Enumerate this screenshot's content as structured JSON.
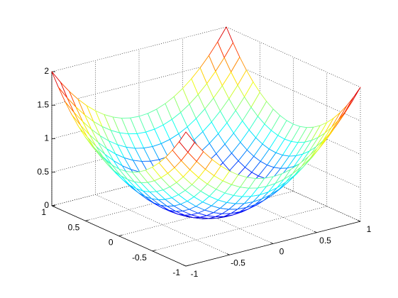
{
  "chart_data": {
    "type": "mesh",
    "colormap": "jet",
    "grid": true,
    "x": [
      -1,
      -0.9,
      -0.8,
      -0.7,
      -0.6,
      -0.5,
      -0.4,
      -0.3,
      -0.2,
      -0.1,
      0,
      0.1,
      0.2,
      0.3,
      0.4,
      0.5,
      0.6,
      0.7,
      0.8,
      0.9,
      1
    ],
    "y": [
      -1,
      -0.9,
      -0.8,
      -0.7,
      -0.6,
      -0.5,
      -0.4,
      -0.3,
      -0.2,
      -0.1,
      0,
      0.1,
      0.2,
      0.3,
      0.4,
      0.5,
      0.6,
      0.7,
      0.8,
      0.9,
      1
    ],
    "z": [
      [
        2,
        1.81,
        1.64,
        1.49,
        1.36,
        1.25,
        1.16,
        1.09,
        1.04,
        1.01,
        1,
        1.01,
        1.04,
        1.09,
        1.16,
        1.25,
        1.36,
        1.49,
        1.64,
        1.81,
        2
      ],
      [
        1.81,
        1.62,
        1.45,
        1.3,
        1.17,
        1.06,
        0.97,
        0.9,
        0.85,
        0.82,
        0.81,
        0.82,
        0.85,
        0.9,
        0.97,
        1.06,
        1.17,
        1.3,
        1.45,
        1.62,
        1.81
      ],
      [
        1.64,
        1.45,
        1.28,
        1.13,
        1,
        0.89,
        0.8,
        0.73,
        0.68,
        0.65,
        0.64,
        0.65,
        0.68,
        0.73,
        0.8,
        0.89,
        1,
        1.13,
        1.28,
        1.45,
        1.64
      ],
      [
        1.49,
        1.3,
        1.13,
        0.98,
        0.85,
        0.74,
        0.65,
        0.58,
        0.53,
        0.5,
        0.49,
        0.5,
        0.53,
        0.58,
        0.65,
        0.74,
        0.85,
        0.98,
        1.13,
        1.3,
        1.49
      ],
      [
        1.36,
        1.17,
        1,
        0.85,
        0.72,
        0.61,
        0.52,
        0.45,
        0.4,
        0.37,
        0.36,
        0.37,
        0.4,
        0.45,
        0.52,
        0.61,
        0.72,
        0.85,
        1,
        1.17,
        1.36
      ],
      [
        1.25,
        1.06,
        0.89,
        0.74,
        0.61,
        0.5,
        0.41,
        0.34,
        0.29,
        0.26,
        0.25,
        0.26,
        0.29,
        0.34,
        0.41,
        0.5,
        0.61,
        0.74,
        0.89,
        1.06,
        1.25
      ],
      [
        1.16,
        0.97,
        0.8,
        0.65,
        0.52,
        0.41,
        0.32,
        0.25,
        0.2,
        0.17,
        0.16,
        0.17,
        0.2,
        0.25,
        0.32,
        0.41,
        0.52,
        0.65,
        0.8,
        0.97,
        1.16
      ],
      [
        1.09,
        0.9,
        0.73,
        0.58,
        0.45,
        0.34,
        0.25,
        0.18,
        0.13,
        0.1,
        0.09,
        0.1,
        0.13,
        0.18,
        0.25,
        0.34,
        0.45,
        0.58,
        0.73,
        0.9,
        1.09
      ],
      [
        1.04,
        0.85,
        0.68,
        0.53,
        0.4,
        0.29,
        0.2,
        0.13,
        0.08,
        0.05,
        0.04,
        0.05,
        0.08,
        0.13,
        0.2,
        0.29,
        0.4,
        0.53,
        0.68,
        0.85,
        1.04
      ],
      [
        1.01,
        0.82,
        0.65,
        0.5,
        0.37,
        0.26,
        0.17,
        0.1,
        0.05,
        0.02,
        0.01,
        0.02,
        0.05,
        0.1,
        0.17,
        0.26,
        0.37,
        0.5,
        0.65,
        0.82,
        1.01
      ],
      [
        1,
        0.81,
        0.64,
        0.49,
        0.36,
        0.25,
        0.16,
        0.09,
        0.04,
        0.01,
        0,
        0.01,
        0.04,
        0.09,
        0.16,
        0.25,
        0.36,
        0.49,
        0.64,
        0.81,
        1
      ],
      [
        1.01,
        0.82,
        0.65,
        0.5,
        0.37,
        0.26,
        0.17,
        0.1,
        0.05,
        0.02,
        0.01,
        0.02,
        0.05,
        0.1,
        0.17,
        0.26,
        0.37,
        0.5,
        0.65,
        0.82,
        1.01
      ],
      [
        1.04,
        0.85,
        0.68,
        0.53,
        0.4,
        0.29,
        0.2,
        0.13,
        0.08,
        0.05,
        0.04,
        0.05,
        0.08,
        0.13,
        0.2,
        0.29,
        0.4,
        0.53,
        0.68,
        0.85,
        1.04
      ],
      [
        1.09,
        0.9,
        0.73,
        0.58,
        0.45,
        0.34,
        0.25,
        0.18,
        0.13,
        0.1,
        0.09,
        0.1,
        0.13,
        0.18,
        0.25,
        0.34,
        0.45,
        0.58,
        0.73,
        0.9,
        1.09
      ],
      [
        1.16,
        0.97,
        0.8,
        0.65,
        0.52,
        0.41,
        0.32,
        0.25,
        0.2,
        0.17,
        0.16,
        0.17,
        0.2,
        0.25,
        0.32,
        0.41,
        0.52,
        0.65,
        0.8,
        0.97,
        1.16
      ],
      [
        1.25,
        1.06,
        0.89,
        0.74,
        0.61,
        0.5,
        0.41,
        0.34,
        0.29,
        0.26,
        0.25,
        0.26,
        0.29,
        0.34,
        0.41,
        0.5,
        0.61,
        0.74,
        0.89,
        1.06,
        1.25
      ],
      [
        1.36,
        1.17,
        1,
        0.85,
        0.72,
        0.61,
        0.52,
        0.45,
        0.4,
        0.37,
        0.36,
        0.37,
        0.4,
        0.45,
        0.52,
        0.61,
        0.72,
        0.85,
        1,
        1.17,
        1.36
      ],
      [
        1.49,
        1.3,
        1.13,
        0.98,
        0.85,
        0.74,
        0.65,
        0.58,
        0.53,
        0.5,
        0.49,
        0.5,
        0.53,
        0.58,
        0.65,
        0.74,
        0.85,
        0.98,
        1.13,
        1.3,
        1.49
      ],
      [
        1.64,
        1.45,
        1.28,
        1.13,
        1,
        0.89,
        0.8,
        0.73,
        0.68,
        0.65,
        0.64,
        0.65,
        0.68,
        0.73,
        0.8,
        0.89,
        1,
        1.13,
        1.28,
        1.45,
        1.64
      ],
      [
        1.81,
        1.62,
        1.45,
        1.3,
        1.17,
        1.06,
        0.97,
        0.9,
        0.85,
        0.82,
        0.81,
        0.82,
        0.85,
        0.9,
        0.97,
        1.06,
        1.17,
        1.3,
        1.45,
        1.62,
        1.81
      ],
      [
        2,
        1.81,
        1.64,
        1.49,
        1.36,
        1.25,
        1.16,
        1.09,
        1.04,
        1.01,
        1,
        1.01,
        1.04,
        1.09,
        1.16,
        1.25,
        1.36,
        1.49,
        1.64,
        1.81,
        2
      ]
    ],
    "xlim": [
      -1,
      1
    ],
    "ylim": [
      -1,
      1
    ],
    "zlim": [
      0,
      2
    ],
    "xticks": [
      -1,
      -0.5,
      0,
      0.5,
      1
    ],
    "yticks": [
      -1,
      -0.5,
      0,
      0.5,
      1
    ],
    "zticks": [
      0,
      0.5,
      1,
      1.5,
      2
    ]
  }
}
